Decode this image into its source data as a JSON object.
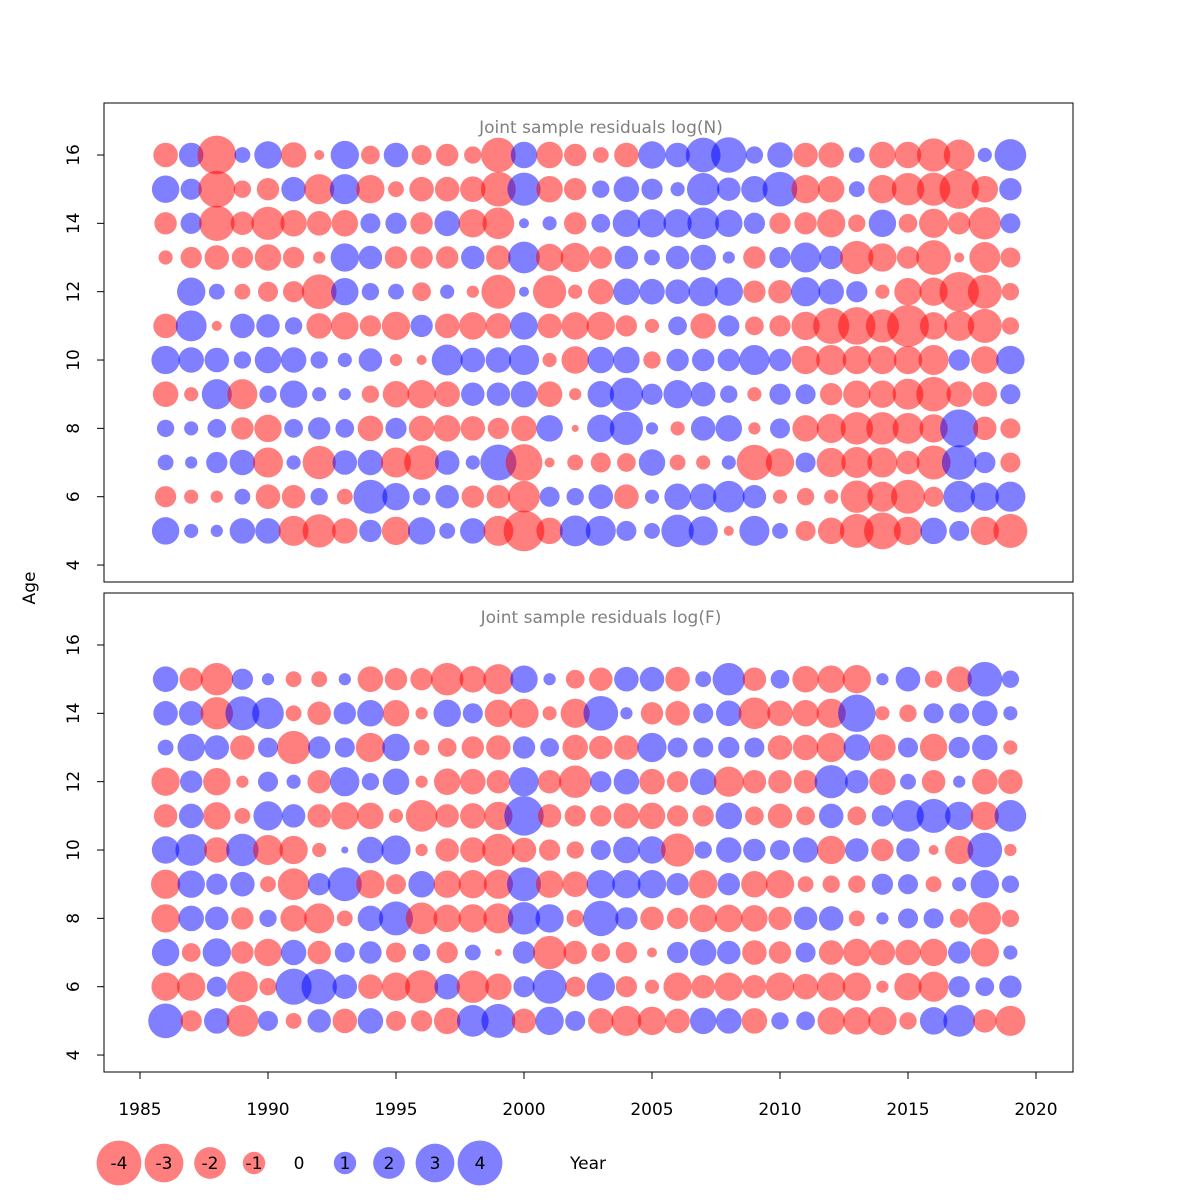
{
  "chart_data": [
    {
      "type": "scatter",
      "title": "Joint sample residuals log(N)",
      "ylabel": "Age",
      "xlabel": "Year",
      "xlim": [
        1984.5,
        2021.5
      ],
      "ylim": [
        3.5,
        17.5
      ],
      "yticks": [
        4,
        6,
        8,
        10,
        12,
        14,
        16
      ],
      "years": [
        1986,
        1987,
        1988,
        1989,
        1990,
        1991,
        1992,
        1993,
        1994,
        1995,
        1996,
        1997,
        1998,
        1999,
        2000,
        2001,
        2002,
        2003,
        2004,
        2005,
        2006,
        2007,
        2008,
        2009,
        2010,
        2011,
        2012,
        2013,
        2014,
        2015,
        2016,
        2017,
        2018,
        2019
      ],
      "ages": [
        5,
        6,
        7,
        8,
        9,
        10,
        11,
        12,
        13,
        14,
        15,
        16
      ],
      "residuals": [
        [
          1.5,
          -0.9,
          0.5,
          0.6,
          -1.3,
          1.6,
          -1.2,
          0,
          -0.4,
          -1.0,
          1.5,
          -1.2
        ],
        [
          0.4,
          -0.4,
          0.3,
          0.4,
          -0.4,
          1.3,
          1.9,
          1.6,
          -0.9,
          0.9,
          0.9,
          1.2
        ],
        [
          0.3,
          -0.3,
          0.9,
          0.7,
          1.8,
          1.2,
          -0.2,
          0.5,
          -1.2,
          -2.5,
          -2.7,
          -3.0
        ],
        [
          1.3,
          0.5,
          1.3,
          -1.0,
          -1.8,
          0.6,
          1.2,
          -0.5,
          -0.9,
          -1.1,
          -0.6,
          0.5
        ],
        [
          1.3,
          -1.2,
          -1.8,
          -1.5,
          0.6,
          1.4,
          1.1,
          -0.8,
          -1.4,
          -2.2,
          -1.0,
          1.5
        ],
        [
          -1.8,
          -1.1,
          0.4,
          0.7,
          1.5,
          1.3,
          0.6,
          -0.9,
          -0.9,
          -1.4,
          1.2,
          -1.3
        ],
        [
          -2.2,
          0.6,
          -2.2,
          1.0,
          0.4,
          0.6,
          -1.3,
          -2.4,
          -0.3,
          -1.2,
          -1.8,
          -0.2
        ],
        [
          -1.3,
          -0.5,
          1.2,
          0.7,
          0.3,
          0.4,
          -1.5,
          1.5,
          1.6,
          -1.4,
          1.8,
          1.6
        ],
        [
          1.0,
          2.3,
          1.3,
          -1.3,
          -0.6,
          1.1,
          -0.9,
          0.6,
          1.1,
          0.8,
          -1.6,
          -0.7
        ],
        [
          -1.6,
          1.5,
          -1.8,
          0.9,
          -1.4,
          -0.3,
          -1.6,
          0.5,
          -1.0,
          0.9,
          -0.5,
          1.2
        ],
        [
          1.5,
          0.6,
          -2.4,
          -1.3,
          -1.6,
          -0.2,
          1.0,
          -0.7,
          -1.0,
          -1.0,
          -1.2,
          -0.8
        ],
        [
          0.5,
          1.1,
          1.2,
          -1.4,
          -1.3,
          1.9,
          -1.2,
          0.4,
          -1.0,
          1.3,
          -1.2,
          -1.0
        ],
        [
          1.3,
          -1.0,
          0.4,
          -1.2,
          1.1,
          1.2,
          -1.5,
          -0.3,
          1.1,
          -1.6,
          -1.3,
          -0.6
        ],
        [
          -1.8,
          -1.1,
          2.6,
          -0.9,
          1.1,
          1.3,
          -1.3,
          -2.3,
          -1.2,
          -2.0,
          -2.4,
          -2.4
        ],
        [
          -3.3,
          -2.0,
          -2.7,
          -1.3,
          1.4,
          1.8,
          1.5,
          0.2,
          2.0,
          0.2,
          2.2,
          1.4
        ],
        [
          -1.4,
          0.8,
          -0.2,
          1.4,
          -1.3,
          -0.4,
          -1.2,
          -2.2,
          -1.5,
          0.4,
          -1.4,
          -1.4
        ],
        [
          1.9,
          0.6,
          -0.5,
          -0.1,
          -0.3,
          -1.5,
          -1.5,
          -0.4,
          -1.7,
          -1.0,
          -1.0,
          -1.0
        ],
        [
          1.8,
          1.2,
          -0.8,
          1.5,
          1.4,
          1.4,
          -1.6,
          -1.3,
          -1.0,
          0.7,
          0.6,
          -0.5
        ],
        [
          0.8,
          -1.2,
          -0.7,
          2.2,
          2.2,
          1.4,
          -0.9,
          1.4,
          1.1,
          1.5,
          1.3,
          -1.2
        ],
        [
          0.5,
          0.4,
          1.4,
          0.3,
          0.9,
          -0.6,
          -0.4,
          1.3,
          0.5,
          1.6,
          0.9,
          1.5
        ],
        [
          2.1,
          1.4,
          -0.5,
          -0.4,
          1.6,
          1.0,
          0.7,
          1.2,
          1.1,
          1.6,
          0.4,
          1.2
        ],
        [
          1.7,
          1.4,
          -0.4,
          1.2,
          1.2,
          1.0,
          -1.3,
          1.7,
          1.3,
          2.0,
          2.1,
          2.4
        ],
        [
          -0.2,
          2.0,
          0.4,
          1.4,
          0.6,
          1.0,
          0.9,
          1.6,
          0.3,
          1.5,
          1.1,
          2.5
        ],
        [
          1.8,
          1.1,
          -2.5,
          -0.3,
          -0.4,
          1.8,
          -0.7,
          -1.0,
          -1.0,
          0.9,
          1.4,
          0.6
        ],
        [
          0.5,
          -0.4,
          -1.6,
          0.8,
          0.9,
          1.0,
          -0.9,
          -1.1,
          0.9,
          -0.9,
          2.4,
          1.3
        ],
        [
          -0.8,
          -0.6,
          0.8,
          -1.4,
          0.8,
          -1.6,
          -1.6,
          1.7,
          1.8,
          -1.0,
          -1.6,
          -1.2
        ],
        [
          -1.4,
          -0.4,
          -1.7,
          -1.7,
          -1.0,
          -1.8,
          -2.6,
          1.3,
          1.1,
          -1.6,
          -1.4,
          -1.3
        ],
        [
          -2.3,
          -2.1,
          -1.9,
          -2.1,
          -1.5,
          -1.6,
          -2.8,
          0.9,
          -2.2,
          -0.6,
          0.5,
          0.5
        ],
        [
          -2.7,
          -1.8,
          -1.8,
          -2.1,
          -1.5,
          -1.6,
          -2.2,
          -0.4,
          -1.6,
          1.5,
          -1.6,
          -1.4
        ],
        [
          -1.6,
          -2.3,
          -1.1,
          -1.9,
          -1.9,
          -1.6,
          -3.5,
          -1.5,
          -1.0,
          -0.7,
          -2.1,
          -1.4
        ],
        [
          1.4,
          -0.8,
          -2.3,
          -1.6,
          -2.4,
          -1.8,
          -1.5,
          -1.6,
          -2.4,
          -1.7,
          -2.2,
          -2.2
        ],
        [
          0.8,
          2.0,
          2.4,
          2.9,
          -1.3,
          0.9,
          -1.8,
          -3.1,
          -0.2,
          -1.0,
          -3.1,
          -1.9
        ],
        [
          -1.6,
          1.6,
          0.9,
          -1.1,
          -1.2,
          -1.5,
          -2.3,
          -2.3,
          -1.9,
          -2.1,
          -1.4,
          0.4
        ],
        [
          -2.3,
          1.8,
          -0.8,
          -0.8,
          0.8,
          1.6,
          -0.6,
          -0.6,
          -0.8,
          0.8,
          1.0,
          2.0
        ]
      ]
    },
    {
      "type": "scatter",
      "title": "Joint sample residuals log(F)",
      "ylabel": "Age",
      "xlabel": "Year",
      "xlim": [
        1984.5,
        2021.5
      ],
      "ylim": [
        3.5,
        17.5
      ],
      "yticks": [
        4,
        6,
        8,
        10,
        12,
        14,
        16
      ],
      "xticks": [
        1985,
        1990,
        1995,
        2000,
        2005,
        2010,
        2015,
        2020
      ],
      "years": [
        1986,
        1987,
        1988,
        1989,
        1990,
        1991,
        1992,
        1993,
        1994,
        1995,
        1996,
        1997,
        1998,
        1999,
        2000,
        2001,
        2002,
        2003,
        2004,
        2005,
        2006,
        2007,
        2008,
        2009,
        2010,
        2011,
        2012,
        2013,
        2014,
        2015,
        2016,
        2017,
        2018,
        2019
      ],
      "ages": [
        5,
        6,
        7,
        8,
        9,
        10,
        11,
        12,
        13,
        14,
        15
      ],
      "residuals": [
        [
          2.4,
          -1.6,
          1.5,
          -1.6,
          -1.7,
          1.5,
          -1.1,
          -1.6,
          0.5,
          1.2,
          1.3
        ],
        [
          -0.9,
          -1.6,
          -0.7,
          1.3,
          1.5,
          2.0,
          1.2,
          1.0,
          1.5,
          1.2,
          -1.1
        ],
        [
          1.3,
          0.8,
          1.6,
          1.1,
          0.9,
          -1.3,
          -1.5,
          -1.5,
          1.2,
          -2.1,
          -2.1
        ],
        [
          -2.0,
          -1.9,
          -1.0,
          -1.0,
          1.2,
          2.1,
          -0.5,
          -0.3,
          -1.2,
          2.3,
          0.9
        ],
        [
          0.8,
          -0.6,
          -1.5,
          0.6,
          -0.5,
          -1.8,
          1.7,
          0.8,
          0.8,
          2.0,
          0.3
        ],
        [
          -0.5,
          2.6,
          1.3,
          -1.4,
          -2.0,
          -1.6,
          1.1,
          0.4,
          -2.2,
          -0.5,
          -0.5
        ],
        [
          1.1,
          2.5,
          -1.1,
          -1.8,
          1.0,
          -0.4,
          -1.1,
          -1.1,
          1.0,
          -1.1,
          -0.5
        ],
        [
          -1.2,
          1.2,
          0.8,
          -0.5,
          2.3,
          0.1,
          -1.5,
          1.7,
          0.8,
          1.0,
          0.3
        ],
        [
          1.3,
          -1.2,
          1.0,
          1.3,
          -1.6,
          1.4,
          -1.4,
          0.6,
          -1.7,
          1.4,
          -1.3
        ],
        [
          -0.8,
          -1.6,
          -0.8,
          2.3,
          -0.8,
          1.7,
          -0.4,
          1.4,
          1.5,
          -1.4,
          -1.0
        ],
        [
          -0.9,
          -2.2,
          0.6,
          -2.0,
          1.4,
          -0.3,
          -2.0,
          -0.3,
          -0.5,
          -0.3,
          -1.0
        ],
        [
          -1.4,
          1.3,
          -0.9,
          -1.5,
          -1.5,
          -1.1,
          -1.1,
          -1.4,
          -0.7,
          1.5,
          -2.1
        ],
        [
          2.0,
          -2.1,
          0.5,
          -1.6,
          -1.6,
          -1.3,
          -1.3,
          -1.3,
          -1.0,
          0.8,
          -1.4
        ],
        [
          2.3,
          -1.4,
          -0.1,
          -1.8,
          -1.7,
          -2.1,
          -1.6,
          -1.1,
          -1.2,
          -1.5,
          -1.8
        ],
        [
          -1.2,
          0.9,
          1.0,
          2.1,
          2.3,
          -1.2,
          3.1,
          1.7,
          1.0,
          -1.7,
          1.5
        ],
        [
          1.6,
          2.3,
          -2.2,
          1.6,
          -1.5,
          -0.9,
          -1.1,
          -1.1,
          0.7,
          -0.4,
          0.3
        ],
        [
          0.8,
          -0.8,
          -1.1,
          -0.6,
          -1.3,
          -0.6,
          -0.9,
          -2.1,
          -1.3,
          -1.7,
          -0.7
        ],
        [
          -1.3,
          1.6,
          -0.7,
          2.5,
          1.6,
          0.8,
          -0.9,
          0.9,
          -1.1,
          2.4,
          -1.1
        ],
        [
          -1.8,
          -0.9,
          -0.9,
          1.0,
          1.6,
          1.4,
          -1.3,
          1.3,
          -1.2,
          0.3,
          1.2
        ],
        [
          -1.6,
          -0.4,
          -0.2,
          -1.1,
          1.6,
          1.5,
          -1.4,
          -1.3,
          1.7,
          -1.0,
          1.2
        ],
        [
          -1.2,
          -1.6,
          0.9,
          -0.9,
          1.0,
          -2.2,
          -0.9,
          -0.9,
          0.8,
          -1.2,
          -1.2
        ],
        [
          1.4,
          -1.1,
          1.4,
          -1.5,
          -1.6,
          0.6,
          -0.9,
          1.4,
          0.8,
          0.8,
          0.5
        ],
        [
          1.3,
          -1.6,
          1.1,
          -1.5,
          1.0,
          1.3,
          1.4,
          -1.8,
          0.9,
          1.3,
          2.1
        ],
        [
          -1.3,
          -1.1,
          -1.2,
          -1.4,
          -1.4,
          1.0,
          -0.7,
          -1.1,
          0.8,
          -2.0,
          -1.1
        ],
        [
          0.6,
          -1.6,
          -1.0,
          -1.1,
          -1.6,
          0.8,
          -1.2,
          -1.1,
          -1.2,
          -1.3,
          0.7
        ],
        [
          0.7,
          -1.3,
          0.8,
          1.1,
          -0.5,
          1.3,
          -0.7,
          -1.1,
          -1.3,
          -1.4,
          -1.4
        ],
        [
          -1.5,
          -1.6,
          -1.2,
          1.2,
          -0.6,
          -1.6,
          1.2,
          2.2,
          -1.7,
          -1.7,
          -1.5
        ],
        [
          -1.5,
          -1.6,
          -1.5,
          -0.5,
          -0.6,
          1.1,
          -0.7,
          1.1,
          1.4,
          2.8,
          -1.6
        ],
        [
          -1.6,
          -0.3,
          -1.3,
          0.3,
          0.9,
          -1.0,
          0.9,
          -1.4,
          -1.4,
          -0.4,
          0.3
        ],
        [
          -0.6,
          -1.5,
          -1.3,
          0.8,
          0.8,
          1.1,
          2.0,
          0.5,
          0.8,
          -0.6,
          1.2
        ],
        [
          1.5,
          -1.8,
          -1.5,
          0.8,
          -0.5,
          -0.2,
          2.3,
          -1.1,
          -1.5,
          0.8,
          -0.6
        ],
        [
          2.0,
          0.9,
          1.0,
          -0.7,
          0.4,
          -1.6,
          1.6,
          0.3,
          0.9,
          0.8,
          -1.3
        ],
        [
          -1.1,
          0.7,
          -1.6,
          -2.1,
          1.6,
          2.4,
          -1.6,
          -1.3,
          1.3,
          1.3,
          2.4
        ],
        [
          -1.8,
          1.0,
          0.4,
          -0.6,
          0.6,
          -0.3,
          2.0,
          -1.2,
          -0.4,
          0.4,
          0.6
        ]
      ]
    }
  ],
  "legend": {
    "items": [
      "-4",
      "-3",
      "-2",
      "-1",
      "0",
      "1",
      "2",
      "3",
      "4"
    ],
    "values": [
      -4,
      -3,
      -2,
      -1,
      0,
      1,
      2,
      3,
      4
    ]
  },
  "colors": {
    "negative": "#ff0000",
    "positive": "#0000ff",
    "title": "#808080",
    "frame": "#000000"
  }
}
